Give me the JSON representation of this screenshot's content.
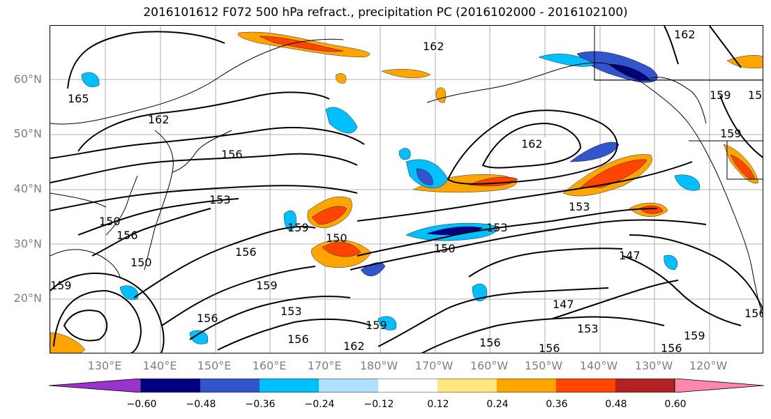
{
  "title": "2016101612 F072 500 hPa refract., precipitation PC (2016102000 - 2016102100)",
  "lat_labels": [
    "60°N",
    "50°N",
    "40°N",
    "30°N",
    "20°N"
  ],
  "lon_labels": [
    "130°E",
    "140°E",
    "150°E",
    "160°E",
    "170°E",
    "180°W",
    "170°W",
    "160°W",
    "150°W",
    "140°W",
    "130°W",
    "120°W"
  ],
  "contour_labels": [
    "162",
    "162",
    "162",
    "165",
    "162",
    "156",
    "153",
    "150",
    "156",
    "159",
    "156",
    "150",
    "159",
    "159",
    "156",
    "153",
    "156",
    "159",
    "162",
    "150",
    "153",
    "150",
    "153",
    "147",
    "147",
    "153",
    "156",
    "156",
    "159",
    "156",
    "159",
    "159",
    "159",
    "156"
  ],
  "colorbar": {
    "ticks": [
      "−0.60",
      "−0.48",
      "−0.36",
      "−0.24",
      "−0.12",
      "0.12",
      "0.24",
      "0.36",
      "0.48",
      "0.60"
    ],
    "colors": [
      "#9933cc",
      "#000080",
      "#3355cc",
      "#00bfff",
      "#b0e0ff",
      "#ffffff",
      "#ffe680",
      "#ffa500",
      "#ff4500",
      "#b22222",
      "#ff88aa"
    ]
  }
}
